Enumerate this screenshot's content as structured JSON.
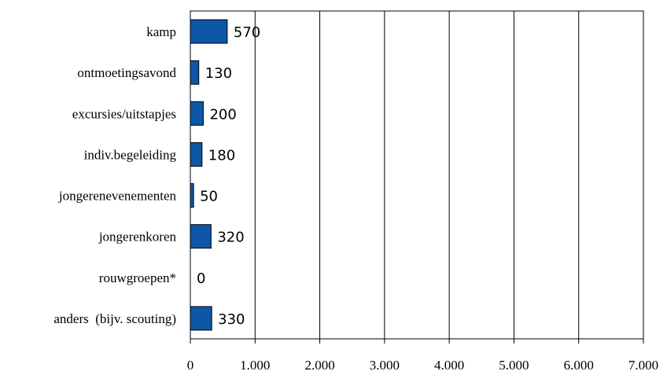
{
  "chart_data": {
    "type": "bar",
    "orientation": "horizontal",
    "categories": [
      "kamp",
      "ontmoetingsavond",
      "excursies/uitstapjes",
      "indiv.begeleiding",
      "jongerenevenementen",
      "jongerenkoren",
      "rouwgroepen*",
      "anders  (bijv. scouting)"
    ],
    "values": [
      570,
      130,
      200,
      180,
      50,
      320,
      0,
      330
    ],
    "data_labels": [
      "570",
      "130",
      "200",
      "180",
      "50",
      "320",
      "0",
      "330"
    ],
    "tick_labels": [
      "0",
      "1.000",
      "2.000",
      "3.000",
      "4.000",
      "5.000",
      "6.000",
      "7.000"
    ],
    "xlim": [
      0,
      7000
    ],
    "grid": "vertical",
    "legend": "none",
    "bar_color": "#0d57a6"
  }
}
